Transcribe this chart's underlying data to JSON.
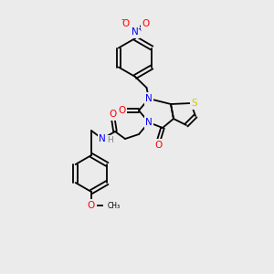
{
  "background_color": "#ebebeb",
  "atom_colors": {
    "N": "#0000ff",
    "O": "#ff0000",
    "S": "#cccc00",
    "C": "#000000",
    "H": "#808080"
  },
  "figsize": [
    3.0,
    3.0
  ],
  "dpi": 100
}
